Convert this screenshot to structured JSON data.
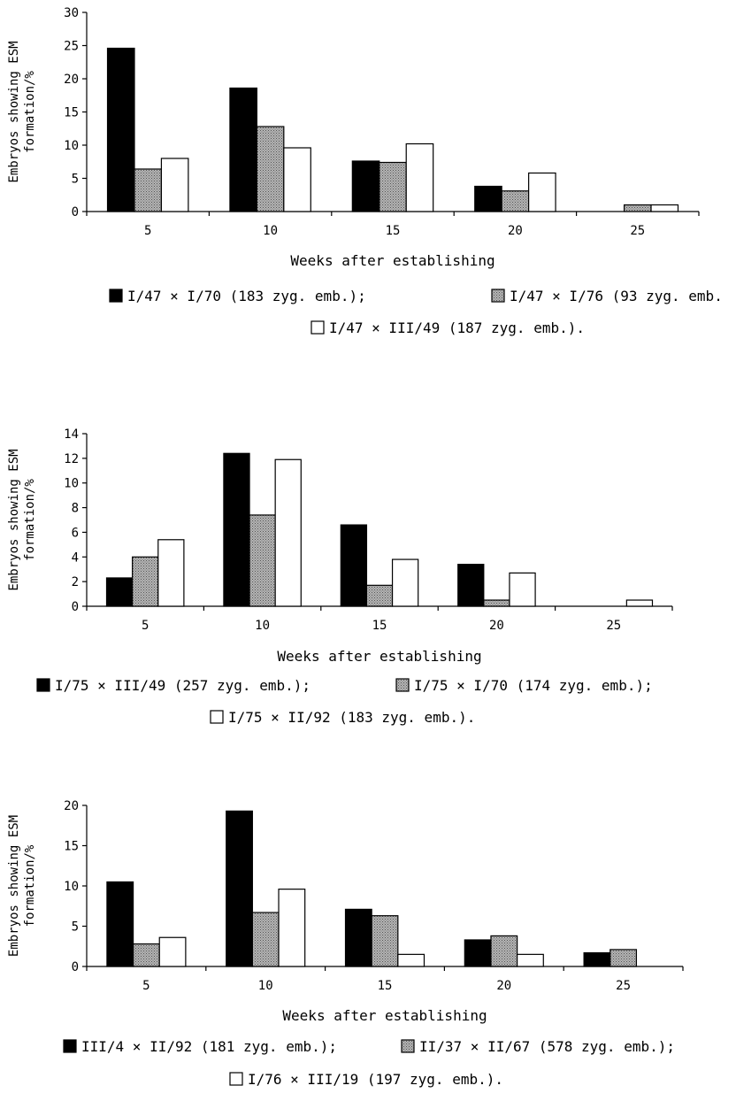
{
  "colors": {
    "series1": "#000000",
    "series2": "#9a9a9a",
    "series3": "#ffffff",
    "axis": "#000000"
  },
  "chart_data": [
    {
      "type": "bar",
      "categories": [
        "5",
        "10",
        "15",
        "20",
        "25"
      ],
      "ylim": [
        0,
        30
      ],
      "yticks": [
        0,
        5,
        10,
        15,
        20,
        25,
        30
      ],
      "xlabel": "Weeks after establishing",
      "ylabel_line1": "Embryos showing ESM",
      "ylabel_line2": "formation/%",
      "series": [
        {
          "name": "I/47 × I/70 (183 zyg. emb.);",
          "values": [
            24.6,
            18.6,
            7.6,
            3.8,
            0
          ]
        },
        {
          "name": "I/47 × I/76 (93 zyg. emb.",
          "values": [
            6.4,
            12.8,
            7.4,
            3.1,
            1.0
          ]
        },
        {
          "name": "I/47 × III/49 (187 zyg. emb.).",
          "values": [
            8.0,
            9.6,
            10.2,
            5.8,
            1.0
          ]
        }
      ]
    },
    {
      "type": "bar",
      "categories": [
        "5",
        "10",
        "15",
        "20",
        "25"
      ],
      "ylim": [
        0,
        14
      ],
      "yticks": [
        0,
        2,
        4,
        6,
        8,
        10,
        12,
        14
      ],
      "xlabel": "Weeks after establishing",
      "ylabel_line1": "Embryos showing ESM",
      "ylabel_line2": "formation/%",
      "series": [
        {
          "name": "I/75 × III/49 (257 zyg. emb.);",
          "values": [
            2.3,
            12.4,
            6.6,
            3.4,
            0
          ]
        },
        {
          "name": "I/75 × I/70 (174 zyg. emb.);",
          "values": [
            4.0,
            7.4,
            1.7,
            0.5,
            0
          ]
        },
        {
          "name": "I/75 × II/92 (183 zyg. emb.).",
          "values": [
            5.4,
            11.9,
            3.8,
            2.7,
            0.5
          ]
        }
      ]
    },
    {
      "type": "bar",
      "categories": [
        "5",
        "10",
        "15",
        "20",
        "25"
      ],
      "ylim": [
        0,
        20
      ],
      "yticks": [
        0,
        5,
        10,
        15,
        20
      ],
      "xlabel": "Weeks after establishing",
      "ylabel_line1": "Embryos showing ESM",
      "ylabel_line2": "formation/%",
      "series": [
        {
          "name": "III/4 × II/92 (181 zyg. emb.);",
          "values": [
            10.5,
            19.3,
            7.1,
            3.3,
            1.7
          ]
        },
        {
          "name": "II/37 × II/67 (578 zyg. emb.);",
          "values": [
            2.8,
            6.7,
            6.3,
            3.8,
            2.1
          ]
        },
        {
          "name": "I/76 × III/19 (197 zyg. emb.).",
          "values": [
            3.6,
            9.6,
            1.5,
            1.5,
            0
          ]
        }
      ]
    }
  ]
}
